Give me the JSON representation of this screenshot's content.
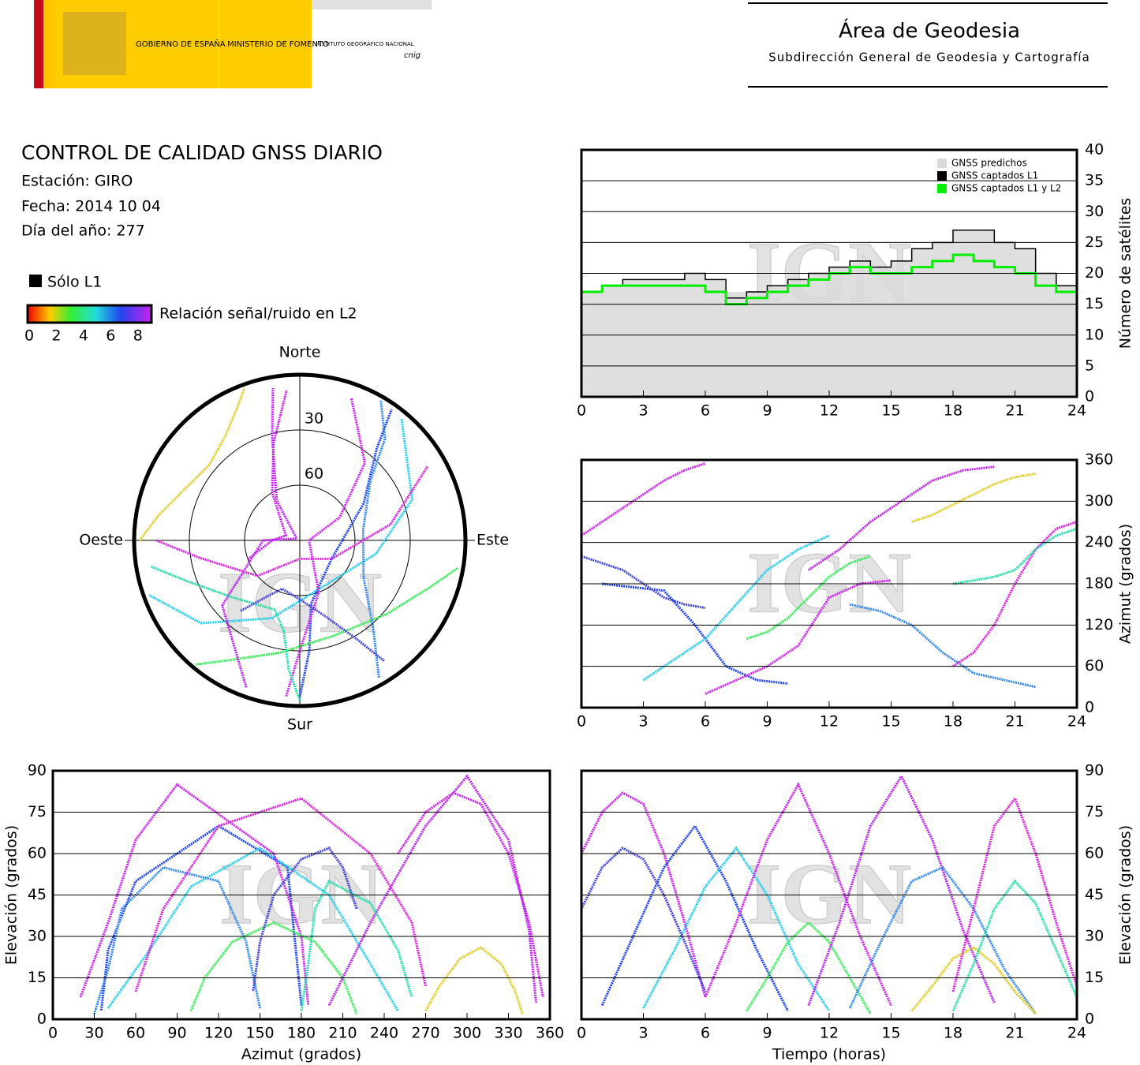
{
  "header": {
    "gov": "GOBIERNO DE ESPAÑA",
    "ministry": "MINISTERIO DE FOMENTO",
    "institute": "INSTITUTO GEOGRÁFICO NACIONAL",
    "cnig": "cnig",
    "area": "Área de Geodesia",
    "subdirection": "Subdirección General de Geodesia y Cartografía"
  },
  "info": {
    "title": "CONTROL DE CALIDAD GNSS DIARIO",
    "station": "Estación: GIRO",
    "date": "Fecha: 2014 10 04",
    "doy": "Día del año: 277"
  },
  "legend": {
    "l1_only": "Sólo L1",
    "snr_label": "Relación señal/ruido en L2",
    "snr_lim": [
      0,
      9
    ],
    "snr_ticks": [
      0,
      2,
      4,
      6,
      8
    ]
  },
  "watermark": "IGN",
  "tracks": [
    {
      "t": [
        0,
        1,
        2,
        3,
        4,
        5,
        6
      ],
      "az": [
        250,
        270,
        290,
        310,
        330,
        345,
        355
      ],
      "el": [
        60,
        75,
        82,
        78,
        60,
        35,
        8
      ],
      "color": "#cc22ee"
    },
    {
      "t": [
        1,
        2.5,
        4,
        5.5,
        7,
        8.5,
        10
      ],
      "az": [
        180,
        175,
        170,
        120,
        60,
        40,
        35
      ],
      "el": [
        5,
        30,
        55,
        70,
        50,
        25,
        3
      ],
      "color": "#2244ee"
    },
    {
      "t": [
        3,
        4.5,
        6,
        7.5,
        9,
        10.5,
        12
      ],
      "az": [
        40,
        70,
        100,
        150,
        200,
        230,
        250
      ],
      "el": [
        4,
        25,
        48,
        62,
        45,
        20,
        3
      ],
      "color": "#22ccee"
    },
    {
      "t": [
        6,
        7.5,
        9,
        10.5,
        12,
        13.5,
        15
      ],
      "az": [
        20,
        40,
        60,
        90,
        160,
        180,
        185
      ],
      "el": [
        8,
        35,
        65,
        85,
        60,
        30,
        5
      ],
      "color": "#cc22ee"
    },
    {
      "t": [
        8,
        9,
        10,
        11,
        12,
        13,
        14
      ],
      "az": [
        100,
        110,
        130,
        160,
        190,
        210,
        220
      ],
      "el": [
        3,
        15,
        28,
        35,
        28,
        15,
        2
      ],
      "color": "#33ee55"
    },
    {
      "t": [
        11,
        12.5,
        14,
        15.5,
        17,
        18.5,
        20
      ],
      "az": [
        200,
        230,
        270,
        300,
        330,
        345,
        350
      ],
      "el": [
        5,
        35,
        70,
        88,
        65,
        32,
        6
      ],
      "color": "#bb22ee"
    },
    {
      "t": [
        13,
        14.5,
        16,
        17.5,
        19,
        20.5,
        22
      ],
      "az": [
        150,
        140,
        120,
        80,
        50,
        40,
        30
      ],
      "el": [
        4,
        28,
        50,
        55,
        40,
        18,
        2
      ],
      "color": "#3388ee"
    },
    {
      "t": [
        16,
        17,
        18,
        19,
        20,
        21,
        22
      ],
      "az": [
        270,
        280,
        295,
        310,
        325,
        335,
        340
      ],
      "el": [
        3,
        12,
        22,
        26,
        20,
        10,
        2
      ],
      "color": "#ddcc22"
    },
    {
      "t": [
        18,
        19,
        20,
        21,
        22,
        23,
        24
      ],
      "az": [
        60,
        80,
        120,
        180,
        230,
        260,
        270
      ],
      "el": [
        10,
        40,
        70,
        80,
        60,
        35,
        12
      ],
      "color": "#dd22dd"
    },
    {
      "t": [
        18,
        19,
        20,
        21,
        22,
        23,
        24
      ],
      "az": [
        180,
        185,
        190,
        200,
        230,
        250,
        260
      ],
      "el": [
        3,
        20,
        40,
        50,
        42,
        25,
        8
      ],
      "color": "#22ddaa"
    },
    {
      "t": [
        0,
        1,
        2,
        3,
        4,
        5,
        6
      ],
      "az": [
        220,
        210,
        200,
        180,
        160,
        150,
        145
      ],
      "el": [
        40,
        55,
        62,
        58,
        45,
        28,
        10
      ],
      "color": "#4444dd"
    }
  ],
  "chart_data": [
    {
      "type": "step-area",
      "y_label": "Número de satélites",
      "x": [
        0,
        1,
        2,
        3,
        4,
        5,
        6,
        7,
        8,
        9,
        10,
        11,
        12,
        13,
        14,
        15,
        16,
        17,
        18,
        19,
        20,
        21,
        22,
        23,
        24
      ],
      "series": [
        {
          "name": "GNSS predichos",
          "color": "#d9d9d9",
          "values": [
            17,
            18,
            19,
            19,
            19,
            20,
            19,
            17,
            17,
            18,
            19,
            20,
            21,
            22,
            21,
            22,
            24,
            25,
            27,
            27,
            25,
            24,
            20,
            18,
            14
          ]
        },
        {
          "name": "GNSS captados L1",
          "color": "#000000",
          "values": [
            17,
            18,
            19,
            19,
            19,
            20,
            19,
            16,
            17,
            18,
            19,
            20,
            21,
            22,
            21,
            22,
            24,
            25,
            27,
            27,
            25,
            24,
            20,
            18,
            14
          ]
        },
        {
          "name": "GNSS captados L1 y L2",
          "color": "#00ee00",
          "values": [
            17,
            18,
            18,
            18,
            18,
            18,
            17,
            15,
            16,
            17,
            18,
            19,
            20,
            21,
            20,
            20,
            21,
            22,
            23,
            22,
            21,
            20,
            18,
            17,
            14
          ]
        }
      ],
      "xlim": [
        0,
        24
      ],
      "xticks": [
        0,
        3,
        6,
        9,
        12,
        15,
        18,
        21,
        24
      ],
      "ylim": [
        0,
        40
      ],
      "yticks": [
        0,
        5,
        10,
        15,
        20,
        25,
        30,
        35,
        40
      ],
      "grid": true
    },
    {
      "type": "azimuth-time",
      "y_label": "Azimut (grados)",
      "xlim": [
        0,
        24
      ],
      "xticks": [
        0,
        3,
        6,
        9,
        12,
        15,
        18,
        21,
        24
      ],
      "ylim": [
        0,
        360
      ],
      "yticks": [
        0,
        60,
        120,
        180,
        240,
        300,
        360
      ],
      "grid": true
    },
    {
      "type": "elevation-time",
      "x_label": "Tiempo (horas)",
      "y_label": "Elevación (grados)",
      "xlim": [
        0,
        24
      ],
      "xticks": [
        0,
        3,
        6,
        9,
        12,
        15,
        18,
        21,
        24
      ],
      "ylim": [
        0,
        90
      ],
      "yticks": [
        0,
        15,
        30,
        45,
        60,
        75,
        90
      ],
      "grid": true
    },
    {
      "type": "azimuth-elevation",
      "x_label": "Azimut (grados)",
      "y_label": "Elevación (grados)",
      "xlim": [
        0,
        360
      ],
      "xticks": [
        0,
        30,
        60,
        90,
        120,
        150,
        180,
        210,
        240,
        270,
        300,
        330,
        360
      ],
      "ylim": [
        0,
        90
      ],
      "yticks": [
        0,
        15,
        30,
        45,
        60,
        75,
        90
      ],
      "grid": true
    },
    {
      "type": "polar",
      "north": "Norte",
      "south": "Sur",
      "east": "Este",
      "west": "Oeste",
      "rlim": [
        90,
        0
      ],
      "rticks": [
        30,
        60
      ]
    }
  ]
}
